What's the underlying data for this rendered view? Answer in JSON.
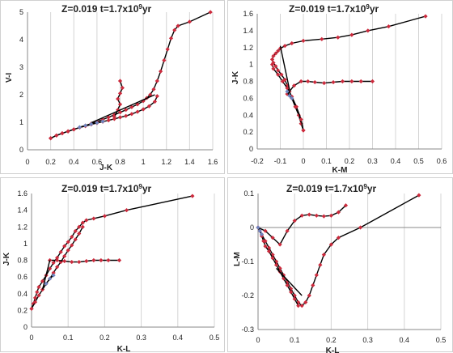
{
  "chart_data": [
    {
      "type": "scatter",
      "title_z": "Z=0.019",
      "title_t": "t=1.7x10",
      "title_exp": "9",
      "title_unit": "yr",
      "xlabel": "J-K",
      "ylabel": "V-I",
      "xlim": [
        0,
        1.6
      ],
      "ylim": [
        0,
        5
      ],
      "xticks": [
        "0",
        "0.2",
        "0.4",
        "0.6",
        "0.8",
        "1",
        "1.2",
        "1.4",
        "1.6"
      ],
      "yticks": [
        "0",
        "1",
        "2",
        "3",
        "4",
        "5"
      ],
      "grid": "vertical",
      "line_color": "#000000",
      "marker_color": "#cc2b3d",
      "blue_color": "#6f86c0",
      "series": [
        {
          "x": [
            0.2,
            0.25,
            0.3,
            0.35,
            0.4,
            0.45,
            0.5,
            0.55,
            0.6,
            0.65,
            0.7,
            0.75,
            0.8,
            0.85,
            0.9,
            0.95,
            1.0,
            1.03,
            1.06,
            1.09,
            1.12,
            1.15,
            1.18,
            1.21,
            1.24,
            1.27,
            1.3,
            1.4,
            1.58
          ],
          "y": [
            0.42,
            0.52,
            0.6,
            0.67,
            0.74,
            0.81,
            0.88,
            0.95,
            1.02,
            1.1,
            1.18,
            1.27,
            1.36,
            1.45,
            1.55,
            1.65,
            1.77,
            1.88,
            2.0,
            2.2,
            2.5,
            2.85,
            3.25,
            3.65,
            4.05,
            4.35,
            4.5,
            4.65,
            5.0
          ],
          "markers": true
        },
        {
          "x": [
            0.2,
            0.25,
            0.3,
            0.35,
            0.4,
            0.45,
            0.5,
            0.55,
            0.6,
            0.65,
            0.7,
            0.75,
            0.8,
            0.85,
            0.9,
            0.95,
            1.0,
            1.05,
            1.1,
            1.12
          ],
          "y": [
            0.42,
            0.52,
            0.6,
            0.67,
            0.74,
            0.81,
            0.86,
            0.92,
            0.97,
            1.02,
            1.07,
            1.12,
            1.18,
            1.23,
            1.3,
            1.38,
            1.47,
            1.58,
            1.75,
            1.95
          ],
          "markers": true
        },
        {
          "x": [
            0.75,
            0.78,
            0.8,
            0.78,
            0.8,
            0.82,
            0.8
          ],
          "y": [
            1.2,
            1.45,
            1.65,
            1.85,
            2.05,
            2.25,
            2.5
          ],
          "markers": true
        },
        {
          "x": [
            0.55,
            1.1
          ],
          "y": [
            0.98,
            2.0
          ],
          "markers": false
        },
        {
          "x": [
            0.45,
            0.5,
            0.55,
            0.6,
            0.65
          ],
          "y": [
            0.82,
            0.88,
            0.93,
            0.98,
            1.03
          ],
          "markers": true,
          "blue": true
        }
      ]
    },
    {
      "type": "scatter",
      "title_z": "Z=0.019",
      "title_t": "t=1.7x10",
      "title_exp": "9",
      "title_unit": "yr",
      "xlabel": "K-M",
      "ylabel": "J-K",
      "xlim": [
        -0.2,
        0.6
      ],
      "ylim": [
        0,
        1.6
      ],
      "xticks": [
        "-0.2",
        "-0.1",
        "0",
        "0.1",
        "0.2",
        "0.3",
        "0.4",
        "0.5",
        "0.6"
      ],
      "yticks": [
        "0",
        "0.2",
        "0.4",
        "0.6",
        "0.8",
        "1",
        "1.2",
        "1.4",
        "1.6"
      ],
      "grid": "vertical",
      "line_color": "#000000",
      "marker_color": "#cc2b3d",
      "blue_color": "#6f86c0",
      "series": [
        {
          "x": [
            0.0,
            -0.01,
            -0.02,
            -0.035,
            -0.05,
            -0.06,
            -0.07,
            -0.08,
            -0.095,
            -0.11,
            -0.12,
            -0.13,
            -0.135,
            -0.13,
            -0.12,
            -0.11,
            -0.1,
            -0.08,
            -0.05,
            0.0,
            0.08,
            0.15,
            0.21,
            0.28,
            0.37,
            0.53
          ],
          "y": [
            0.22,
            0.3,
            0.4,
            0.5,
            0.6,
            0.68,
            0.75,
            0.82,
            0.88,
            0.93,
            0.98,
            1.02,
            1.06,
            1.1,
            1.13,
            1.16,
            1.19,
            1.22,
            1.25,
            1.28,
            1.3,
            1.32,
            1.35,
            1.4,
            1.45,
            1.57
          ],
          "markers": true
        },
        {
          "x": [
            0.0,
            -0.01,
            -0.03,
            -0.05,
            -0.07,
            -0.09,
            -0.11,
            -0.13,
            -0.135
          ],
          "y": [
            0.22,
            0.35,
            0.5,
            0.62,
            0.72,
            0.8,
            0.88,
            0.95,
            1.0
          ],
          "markers": true
        },
        {
          "x": [
            -0.07,
            -0.04,
            -0.01,
            0.02,
            0.05,
            0.09,
            0.13,
            0.17,
            0.21,
            0.25,
            0.3
          ],
          "y": [
            0.65,
            0.75,
            0.8,
            0.8,
            0.79,
            0.78,
            0.79,
            0.8,
            0.8,
            0.8,
            0.8
          ],
          "markers": true
        },
        {
          "x": [
            -0.1,
            -0.06
          ],
          "y": [
            1.22,
            0.7
          ],
          "markers": false
        },
        {
          "x": [
            -0.07,
            -0.06,
            -0.05
          ],
          "y": [
            0.68,
            0.63,
            0.6
          ],
          "markers": true,
          "blue": true
        }
      ]
    },
    {
      "type": "scatter",
      "title_z": "Z=0.019",
      "title_t": "t=1.7x10",
      "title_exp": "9",
      "title_unit": "yr",
      "xlabel": "K-L",
      "ylabel": "J-K",
      "xlim": [
        0,
        0.5
      ],
      "ylim": [
        0,
        1.6
      ],
      "xticks": [
        "0",
        "0.1",
        "0.2",
        "0.3",
        "0.4",
        "0.5"
      ],
      "yticks": [
        "0",
        "0.2",
        "0.4",
        "0.6",
        "0.8",
        "1",
        "1.2",
        "1.4",
        "1.6"
      ],
      "grid": "vertical",
      "line_color": "#000000",
      "marker_color": "#cc2b3d",
      "blue_color": "#6f86c0",
      "series": [
        {
          "x": [
            0.0,
            0.005,
            0.01,
            0.015,
            0.02,
            0.03,
            0.04,
            0.05,
            0.06,
            0.07,
            0.08,
            0.09,
            0.1,
            0.11,
            0.12,
            0.13,
            0.14,
            0.15,
            0.17,
            0.2,
            0.26,
            0.44
          ],
          "y": [
            0.22,
            0.28,
            0.35,
            0.42,
            0.48,
            0.55,
            0.62,
            0.7,
            0.77,
            0.83,
            0.9,
            0.97,
            1.02,
            1.08,
            1.15,
            1.2,
            1.25,
            1.28,
            1.3,
            1.33,
            1.4,
            1.57
          ],
          "markers": true
        },
        {
          "x": [
            0.0,
            0.01,
            0.02,
            0.03,
            0.04,
            0.05,
            0.06,
            0.07,
            0.08,
            0.09,
            0.1,
            0.11,
            0.12,
            0.13,
            0.14
          ],
          "y": [
            0.22,
            0.3,
            0.38,
            0.45,
            0.52,
            0.58,
            0.65,
            0.72,
            0.78,
            0.85,
            0.92,
            0.98,
            1.05,
            1.12,
            1.2
          ],
          "markers": true
        },
        {
          "x": [
            0.05,
            0.07,
            0.09,
            0.11,
            0.13,
            0.15,
            0.17,
            0.19,
            0.21,
            0.24
          ],
          "y": [
            0.8,
            0.8,
            0.79,
            0.78,
            0.78,
            0.79,
            0.8,
            0.8,
            0.8,
            0.8
          ],
          "markers": true
        },
        {
          "x": [
            0.03,
            0.05
          ],
          "y": [
            0.45,
            0.8
          ],
          "markers": false
        },
        {
          "x": [
            0.04,
            0.05,
            0.06
          ],
          "y": [
            0.52,
            0.58,
            0.62
          ],
          "markers": true,
          "blue": true
        }
      ]
    },
    {
      "type": "scatter",
      "title_z": "Z=0.019",
      "title_t": "t=1.7x10",
      "title_exp": "9",
      "title_unit": "yr",
      "xlabel": "K-L",
      "ylabel": "L-M",
      "xlim": [
        0,
        0.5
      ],
      "ylim": [
        -0.3,
        0.1
      ],
      "xticks": [
        "0",
        "0.1",
        "0.2",
        "0.3",
        "0.4",
        "0.5"
      ],
      "yticks": [
        "-0.3",
        "-0.2",
        "-0.1",
        "0",
        "0.1"
      ],
      "grid": "vertical",
      "line_color": "#000000",
      "marker_color": "#cc2b3d",
      "blue_color": "#6f86c0",
      "series": [
        {
          "x": [
            0.0,
            0.01,
            0.02,
            0.03,
            0.04,
            0.05,
            0.06,
            0.07,
            0.08,
            0.09,
            0.1,
            0.11,
            0.12,
            0.13,
            0.14,
            0.15,
            0.16,
            0.17,
            0.18,
            0.2,
            0.22,
            0.28,
            0.44
          ],
          "y": [
            0.0,
            -0.02,
            -0.04,
            -0.06,
            -0.08,
            -0.1,
            -0.12,
            -0.14,
            -0.16,
            -0.18,
            -0.2,
            -0.22,
            -0.23,
            -0.22,
            -0.2,
            -0.17,
            -0.14,
            -0.11,
            -0.08,
            -0.05,
            -0.03,
            0.0,
            0.095
          ],
          "markers": true
        },
        {
          "x": [
            0.0,
            0.005,
            0.01,
            0.015,
            0.02,
            0.03,
            0.04,
            0.05,
            0.06,
            0.07,
            0.08,
            0.09,
            0.1,
            0.11
          ],
          "y": [
            0.0,
            -0.01,
            -0.025,
            -0.04,
            -0.055,
            -0.07,
            -0.09,
            -0.11,
            -0.13,
            -0.15,
            -0.17,
            -0.19,
            -0.21,
            -0.23
          ],
          "markers": true
        },
        {
          "x": [
            0.0,
            0.02,
            0.04,
            0.06,
            0.08,
            0.1,
            0.12,
            0.14,
            0.16,
            0.18,
            0.2,
            0.22,
            0.24
          ],
          "y": [
            0.0,
            -0.01,
            -0.03,
            -0.05,
            -0.01,
            0.02,
            0.035,
            0.038,
            0.035,
            0.033,
            0.035,
            0.045,
            0.065
          ],
          "markers": true
        },
        {
          "x": [
            0.05,
            0.12
          ],
          "y": [
            -0.12,
            -0.2
          ],
          "markers": false
        },
        {
          "x": [
            0.0,
            0.005,
            0.01
          ],
          "y": [
            0.0,
            -0.01,
            -0.02
          ],
          "markers": true,
          "blue": true
        }
      ]
    }
  ]
}
